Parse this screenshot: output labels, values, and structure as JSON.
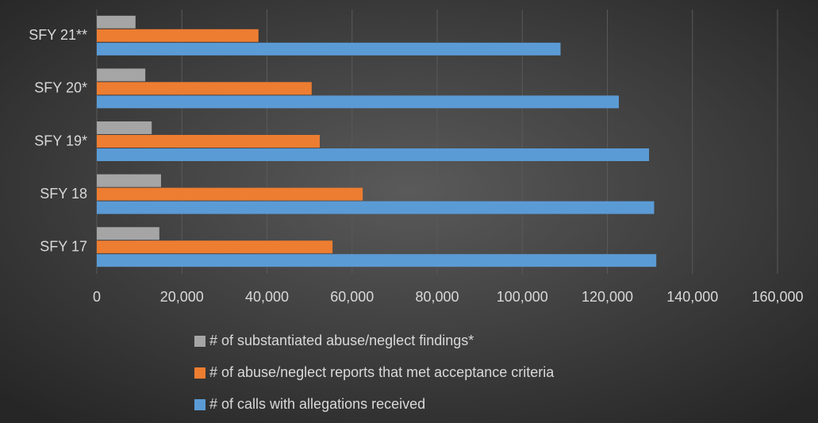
{
  "chart_data": {
    "type": "hbar",
    "categories": [
      "SFY 17",
      "SFY 18",
      "SFY 19*",
      "SFY 20*",
      "SFY 21**"
    ],
    "series": [
      {
        "name": "# of substantiated abuse/neglect findings*",
        "color": "#a5a5a5",
        "values": [
          14700,
          15100,
          12900,
          11400,
          9100
        ]
      },
      {
        "name": "# of abuse/neglect reports that met acceptance criteria",
        "color": "#ed7d31",
        "values": [
          55400,
          62500,
          52400,
          50500,
          38000
        ]
      },
      {
        "name": "# of calls with allegations received",
        "color": "#5b9bd5",
        "values": [
          131500,
          131000,
          129800,
          122700,
          109000
        ]
      }
    ],
    "xlim": [
      0,
      160000
    ],
    "xticks": [
      0,
      {
        "value": 20000,
        "label": "20,000"
      },
      {
        "value": 40000,
        "label": "40,000"
      },
      {
        "value": 60000,
        "label": "60,000"
      },
      {
        "value": 80000,
        "label": "80,000"
      },
      {
        "value": 100000,
        "label": "100,000"
      },
      {
        "value": 120000,
        "label": "120,000"
      },
      {
        "value": 140000,
        "label": "140,000"
      },
      {
        "value": 160000,
        "label": "160,000"
      }
    ],
    "grid": true,
    "legend": "bottom"
  }
}
